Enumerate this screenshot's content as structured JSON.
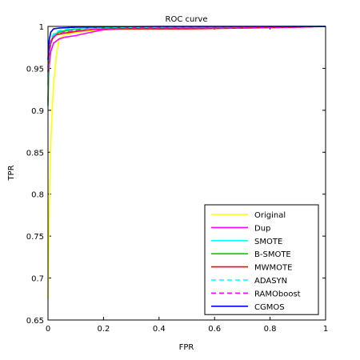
{
  "chart_data": {
    "type": "line",
    "title": "ROC curve",
    "xlabel": "FPR",
    "ylabel": "TPR",
    "xlim": [
      0,
      1
    ],
    "ylim": [
      0.65,
      1
    ],
    "xticks": [
      0,
      0.2,
      0.4,
      0.6,
      0.8,
      1
    ],
    "xtick_labels": [
      "0",
      "0.2",
      "0.4",
      "0.6",
      "0.8",
      "1"
    ],
    "yticks": [
      0.65,
      0.7,
      0.75,
      0.8,
      0.85,
      0.9,
      0.95,
      1
    ],
    "ytick_labels": [
      "0.65",
      "0.7",
      "0.75",
      "0.8",
      "0.85",
      "0.9",
      "0.95",
      "1"
    ],
    "grid": false,
    "legend": "bottom-right",
    "series": [
      {
        "name": "Original",
        "color": "#ffff00",
        "dash": "solid",
        "x": [
          0,
          0.002,
          0.005,
          0.01,
          0.015,
          0.02,
          0.03,
          0.04,
          0.06,
          0.1,
          0.2,
          0.4,
          0.6,
          0.8,
          1
        ],
        "y": [
          0.675,
          0.73,
          0.79,
          0.86,
          0.9,
          0.93,
          0.965,
          0.985,
          0.99,
          0.993,
          0.996,
          0.998,
          0.999,
          0.9995,
          1
        ]
      },
      {
        "name": "Dup",
        "color": "#ff00ff",
        "dash": "solid",
        "x": [
          0,
          0.002,
          0.005,
          0.01,
          0.02,
          0.04,
          0.06,
          0.1,
          0.14,
          0.2,
          0.3,
          0.5,
          0.7,
          0.9,
          1
        ],
        "y": [
          0.91,
          0.94,
          0.955,
          0.97,
          0.98,
          0.985,
          0.987,
          0.989,
          0.992,
          0.996,
          0.998,
          0.998,
          0.999,
          0.9995,
          1
        ]
      },
      {
        "name": "SMOTE",
        "color": "#00ffff",
        "dash": "solid",
        "x": [
          0,
          0.002,
          0.005,
          0.01,
          0.02,
          0.04,
          0.08,
          0.15,
          0.3,
          0.6,
          1
        ],
        "y": [
          0.93,
          0.955,
          0.97,
          0.982,
          0.99,
          0.994,
          0.996,
          0.998,
          0.999,
          0.9995,
          1
        ]
      },
      {
        "name": "B-SMOTE",
        "color": "#00cc00",
        "dash": "solid",
        "x": [
          0,
          0.002,
          0.005,
          0.01,
          0.02,
          0.04,
          0.08,
          0.15,
          0.3,
          0.6,
          1
        ],
        "y": [
          0.905,
          0.95,
          0.97,
          0.98,
          0.988,
          0.993,
          0.996,
          0.998,
          0.999,
          0.9995,
          1
        ]
      },
      {
        "name": "MWMOTE",
        "color": "#ff0000",
        "dash": "solid",
        "x": [
          0,
          0.003,
          0.008,
          0.015,
          0.03,
          0.06,
          0.1,
          0.15,
          0.2,
          0.3,
          0.5,
          0.7,
          0.9,
          1
        ],
        "y": [
          0.945,
          0.965,
          0.978,
          0.985,
          0.99,
          0.992,
          0.994,
          0.996,
          0.997,
          0.997,
          0.997,
          0.998,
          0.999,
          1
        ]
      },
      {
        "name": "ADASYN",
        "color": "#00ffff",
        "dash": "dashed",
        "x": [
          0,
          0.002,
          0.005,
          0.01,
          0.02,
          0.04,
          0.08,
          0.15,
          0.3,
          0.6,
          1
        ],
        "y": [
          0.94,
          0.96,
          0.975,
          0.985,
          0.991,
          0.995,
          0.997,
          0.998,
          0.999,
          0.9995,
          1
        ]
      },
      {
        "name": "RAMOboost",
        "color": "#ff00ff",
        "dash": "dashed",
        "x": [
          0,
          0.003,
          0.008,
          0.015,
          0.03,
          0.06,
          0.1,
          0.2,
          0.3,
          0.5,
          0.7,
          0.9,
          1
        ],
        "y": [
          0.95,
          0.97,
          0.98,
          0.986,
          0.99,
          0.993,
          0.995,
          0.997,
          0.998,
          0.998,
          0.998,
          0.999,
          1
        ]
      },
      {
        "name": "CGMOS",
        "color": "#0000ff",
        "dash": "solid",
        "x": [
          0,
          0.002,
          0.005,
          0.01,
          0.02,
          0.04,
          0.1,
          0.2,
          0.4,
          0.6,
          0.8,
          1
        ],
        "y": [
          0.96,
          0.975,
          0.985,
          0.993,
          0.997,
          0.998,
          0.999,
          0.9995,
          1,
          1,
          1,
          1
        ]
      }
    ]
  }
}
